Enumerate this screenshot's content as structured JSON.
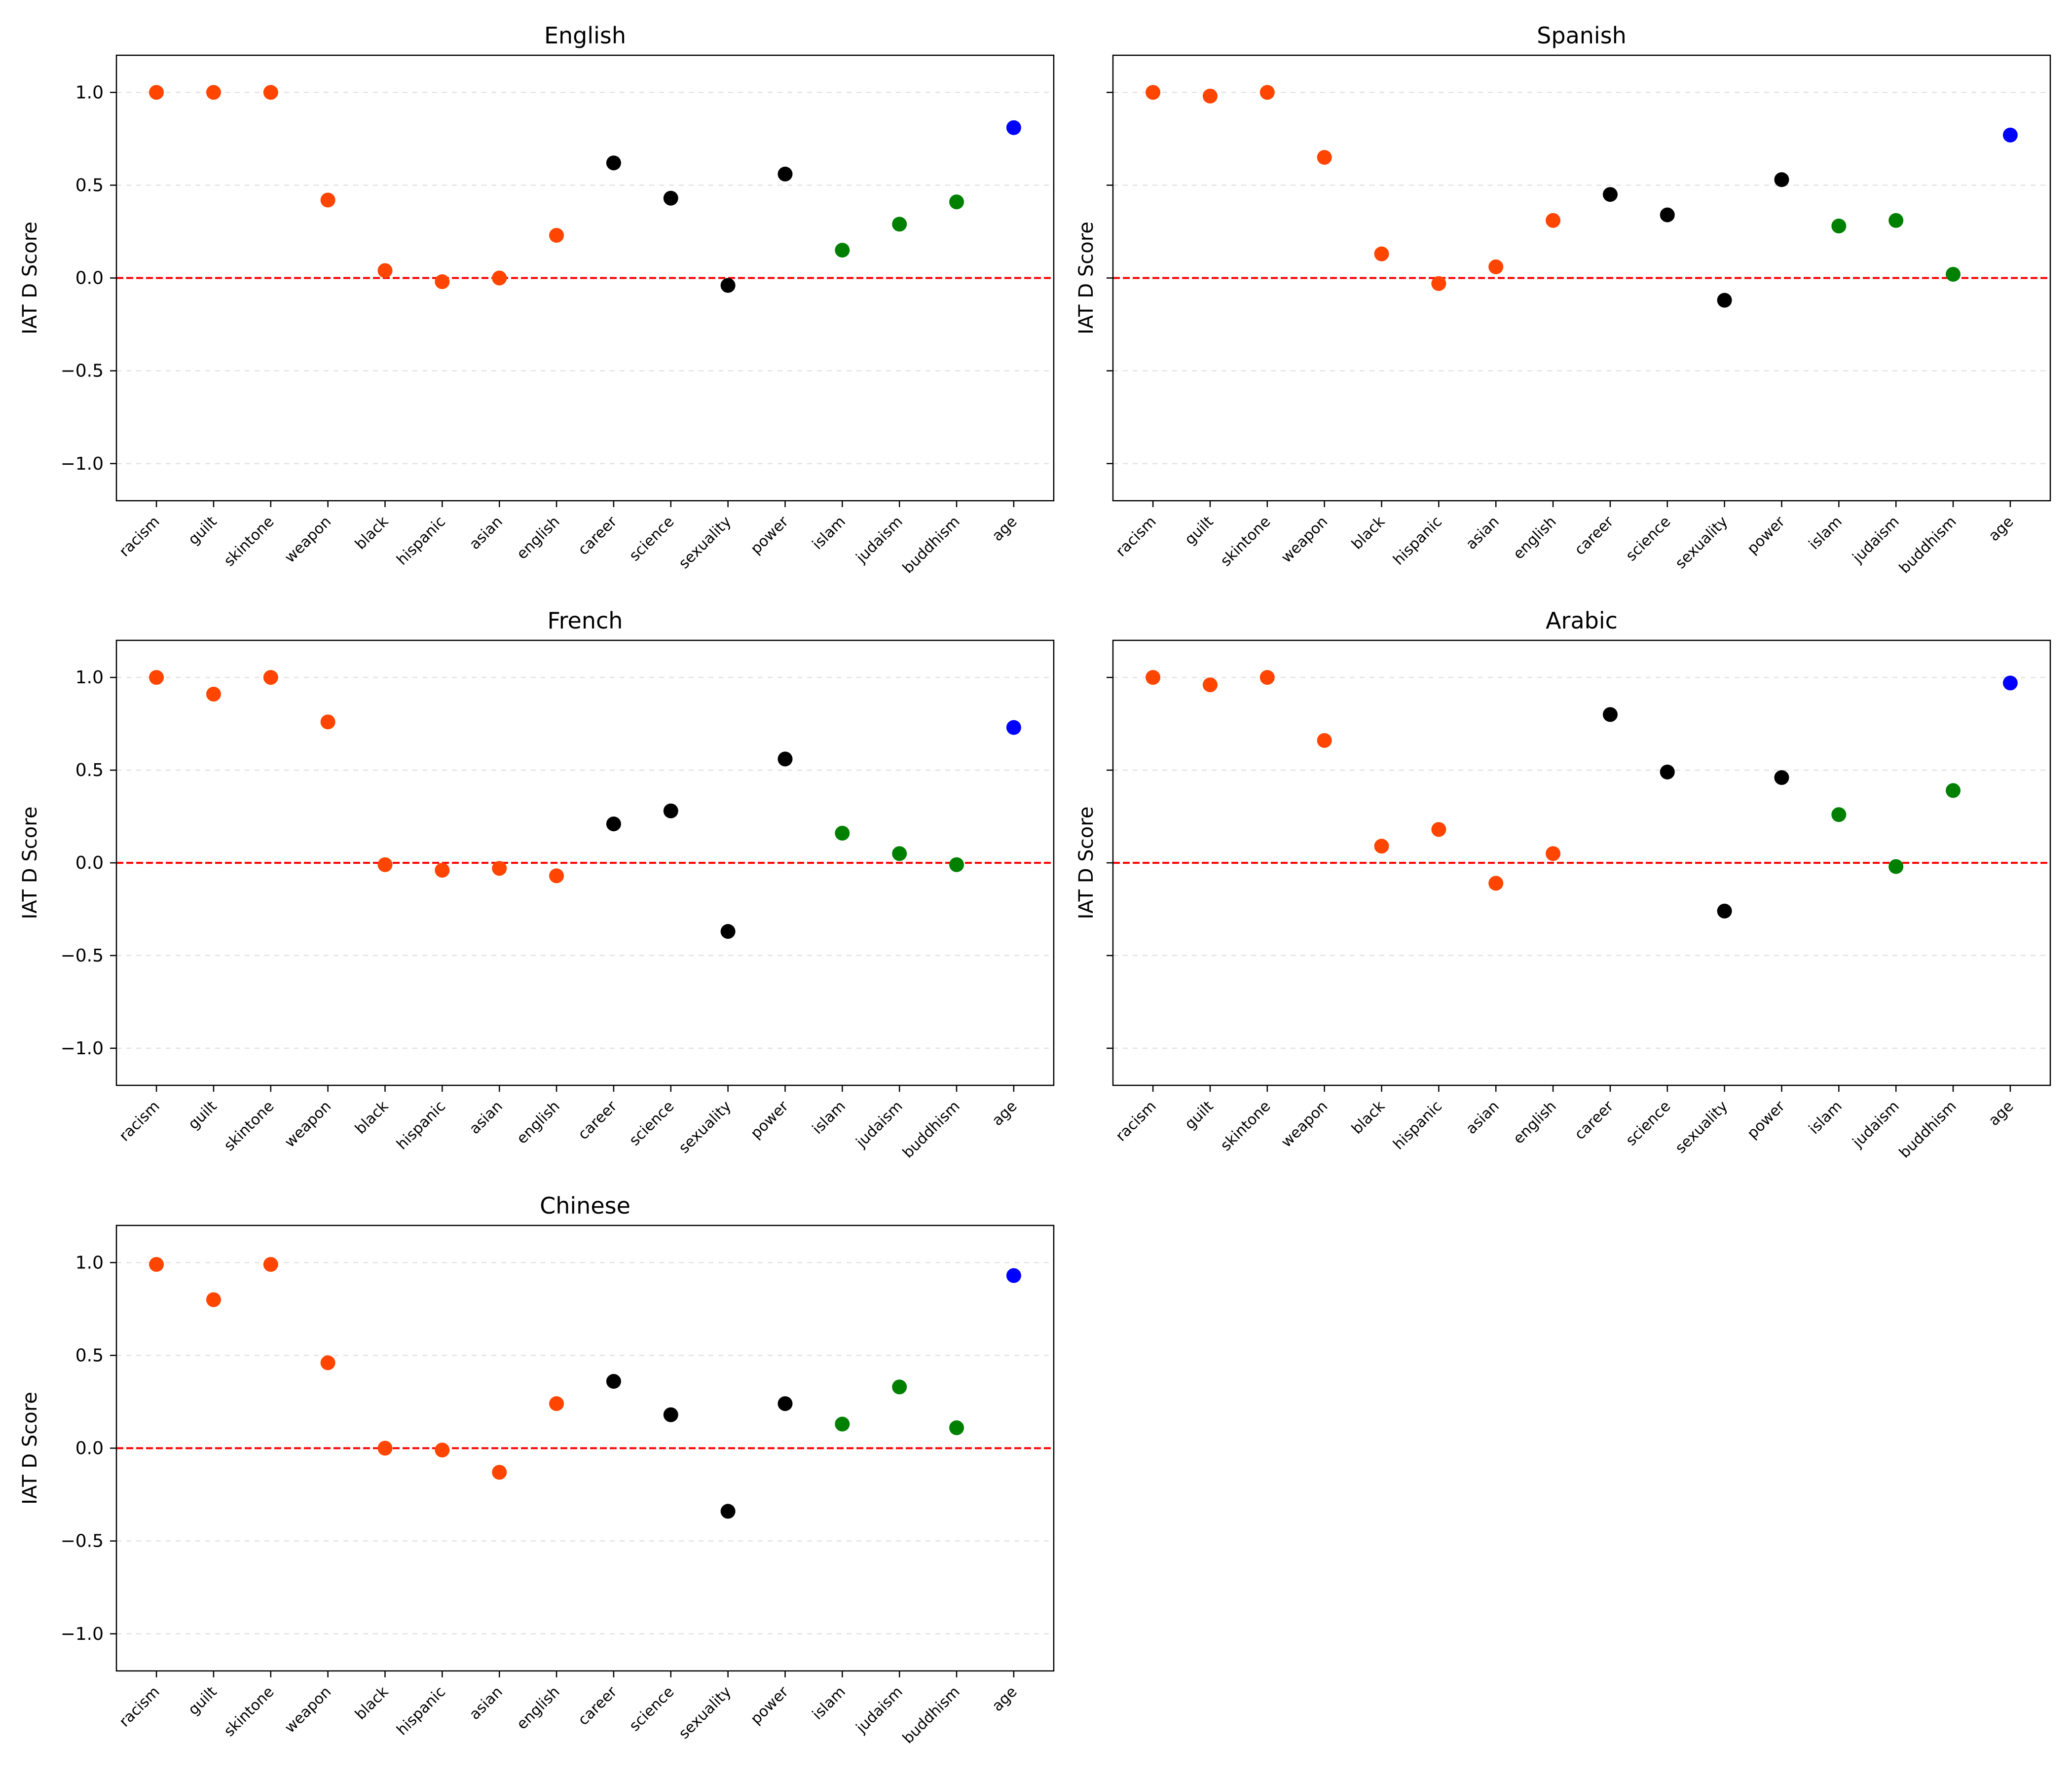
{
  "figure": {
    "category_colors": {
      "race": "#ff4500",
      "social": "#000000",
      "religion": "#008000",
      "age": "#0000ff"
    }
  },
  "chart_data": [
    {
      "type": "scatter",
      "title": "English",
      "xlabel": "",
      "ylabel": "IAT D Score",
      "ylim": [
        -1.2,
        1.2
      ],
      "yticks": [
        -1.0,
        -0.5,
        0.0,
        0.5,
        1.0
      ],
      "ytick_labels": [
        "−1.0",
        "−0.5",
        "0.0",
        "0.5",
        "1.0"
      ],
      "show_yticklabels": true,
      "categories": [
        "racism",
        "guilt",
        "skintone",
        "weapon",
        "black",
        "hispanic",
        "asian",
        "english",
        "career",
        "science",
        "sexuality",
        "power",
        "islam",
        "judaism",
        "buddhism",
        "age"
      ],
      "groups": [
        "race",
        "race",
        "race",
        "race",
        "race",
        "race",
        "race",
        "race",
        "social",
        "social",
        "social",
        "social",
        "religion",
        "religion",
        "religion",
        "age"
      ],
      "values": [
        1.0,
        1.0,
        1.0,
        0.42,
        0.04,
        -0.02,
        0.0,
        0.23,
        0.62,
        0.43,
        -0.04,
        0.56,
        0.15,
        0.29,
        0.41,
        0.81
      ],
      "reference_line": 0.0,
      "grid": "y dashed"
    },
    {
      "type": "scatter",
      "title": "Spanish",
      "xlabel": "",
      "ylabel": "IAT D Score",
      "ylim": [
        -1.2,
        1.2
      ],
      "yticks": [
        -1.0,
        -0.5,
        0.0,
        0.5,
        1.0
      ],
      "ytick_labels": [
        "−1.0",
        "−0.5",
        "0.0",
        "0.5",
        "1.0"
      ],
      "show_yticklabels": false,
      "categories": [
        "racism",
        "guilt",
        "skintone",
        "weapon",
        "black",
        "hispanic",
        "asian",
        "english",
        "career",
        "science",
        "sexuality",
        "power",
        "islam",
        "judaism",
        "buddhism",
        "age"
      ],
      "groups": [
        "race",
        "race",
        "race",
        "race",
        "race",
        "race",
        "race",
        "race",
        "social",
        "social",
        "social",
        "social",
        "religion",
        "religion",
        "religion",
        "age"
      ],
      "values": [
        1.0,
        0.98,
        1.0,
        0.65,
        0.13,
        -0.03,
        0.06,
        0.31,
        0.45,
        0.34,
        -0.12,
        0.53,
        0.28,
        0.31,
        0.02,
        0.77
      ],
      "reference_line": 0.0,
      "grid": "y dashed"
    },
    {
      "type": "scatter",
      "title": "French",
      "xlabel": "",
      "ylabel": "IAT D Score",
      "ylim": [
        -1.2,
        1.2
      ],
      "yticks": [
        -1.0,
        -0.5,
        0.0,
        0.5,
        1.0
      ],
      "ytick_labels": [
        "−1.0",
        "−0.5",
        "0.0",
        "0.5",
        "1.0"
      ],
      "show_yticklabels": true,
      "categories": [
        "racism",
        "guilt",
        "skintone",
        "weapon",
        "black",
        "hispanic",
        "asian",
        "english",
        "career",
        "science",
        "sexuality",
        "power",
        "islam",
        "judaism",
        "buddhism",
        "age"
      ],
      "groups": [
        "race",
        "race",
        "race",
        "race",
        "race",
        "race",
        "race",
        "race",
        "social",
        "social",
        "social",
        "social",
        "religion",
        "religion",
        "religion",
        "age"
      ],
      "values": [
        1.0,
        0.91,
        1.0,
        0.76,
        -0.01,
        -0.04,
        -0.03,
        -0.07,
        0.21,
        0.28,
        -0.37,
        0.56,
        0.16,
        0.05,
        -0.01,
        0.73
      ],
      "reference_line": 0.0,
      "grid": "y dashed"
    },
    {
      "type": "scatter",
      "title": "Arabic",
      "xlabel": "",
      "ylabel": "IAT D Score",
      "ylim": [
        -1.2,
        1.2
      ],
      "yticks": [
        -1.0,
        -0.5,
        0.0,
        0.5,
        1.0
      ],
      "ytick_labels": [
        "−1.0",
        "−0.5",
        "0.0",
        "0.5",
        "1.0"
      ],
      "show_yticklabels": false,
      "categories": [
        "racism",
        "guilt",
        "skintone",
        "weapon",
        "black",
        "hispanic",
        "asian",
        "english",
        "career",
        "science",
        "sexuality",
        "power",
        "islam",
        "judaism",
        "buddhism",
        "age"
      ],
      "groups": [
        "race",
        "race",
        "race",
        "race",
        "race",
        "race",
        "race",
        "race",
        "social",
        "social",
        "social",
        "social",
        "religion",
        "religion",
        "religion",
        "age"
      ],
      "values": [
        1.0,
        0.96,
        1.0,
        0.66,
        0.09,
        0.18,
        -0.11,
        0.05,
        0.8,
        0.49,
        -0.26,
        0.46,
        0.26,
        -0.02,
        0.39,
        0.97
      ],
      "reference_line": 0.0,
      "grid": "y dashed"
    },
    {
      "type": "scatter",
      "title": "Chinese",
      "xlabel": "",
      "ylabel": "IAT D Score",
      "ylim": [
        -1.2,
        1.2
      ],
      "yticks": [
        -1.0,
        -0.5,
        0.0,
        0.5,
        1.0
      ],
      "ytick_labels": [
        "−1.0",
        "−0.5",
        "0.0",
        "0.5",
        "1.0"
      ],
      "show_yticklabels": true,
      "categories": [
        "racism",
        "guilt",
        "skintone",
        "weapon",
        "black",
        "hispanic",
        "asian",
        "english",
        "career",
        "science",
        "sexuality",
        "power",
        "islam",
        "judaism",
        "buddhism",
        "age"
      ],
      "groups": [
        "race",
        "race",
        "race",
        "race",
        "race",
        "race",
        "race",
        "race",
        "social",
        "social",
        "social",
        "social",
        "religion",
        "religion",
        "religion",
        "age"
      ],
      "values": [
        0.99,
        0.8,
        0.99,
        0.46,
        0.0,
        -0.01,
        -0.13,
        0.24,
        0.36,
        0.18,
        -0.34,
        0.24,
        0.13,
        0.33,
        0.11,
        0.93
      ],
      "reference_line": 0.0,
      "grid": "y dashed"
    }
  ]
}
